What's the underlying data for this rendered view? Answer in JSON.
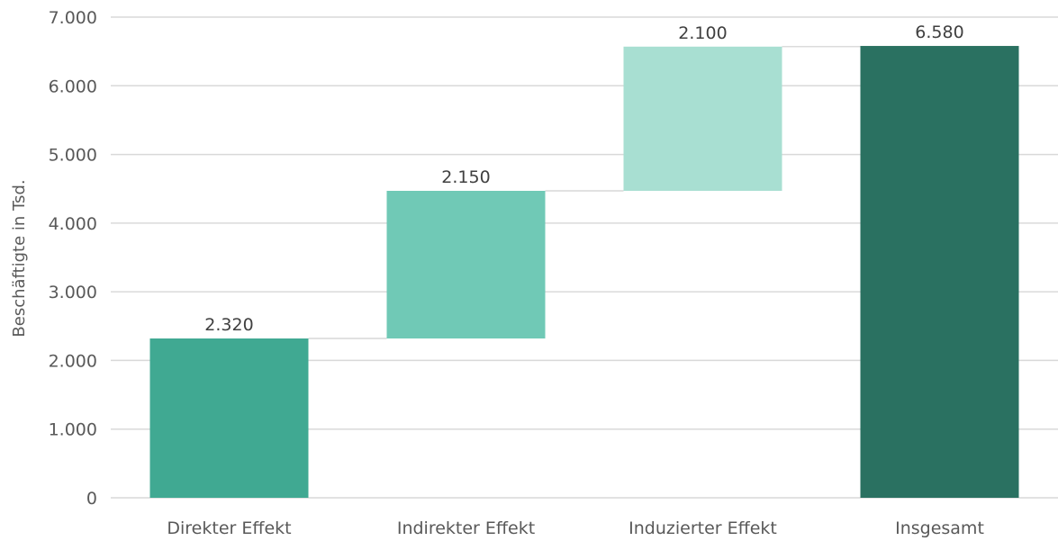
{
  "chart_data": {
    "type": "bar",
    "subtype": "waterfall",
    "title": "",
    "xlabel": "",
    "ylabel": "Beschäftigte in Tsd.",
    "ylim": [
      0,
      7000
    ],
    "yticks": [
      0,
      1000,
      2000,
      3000,
      4000,
      5000,
      6000,
      7000
    ],
    "ytick_labels": [
      "0",
      "1.000",
      "2.000",
      "3.000",
      "4.000",
      "5.000",
      "6.000",
      "7.000"
    ],
    "grid": true,
    "legend": "none",
    "categories": [
      "Direkter Effekt",
      "Indirekter Effekt",
      "Induzierter Effekt",
      "Insgesamt"
    ],
    "values": [
      2320,
      2150,
      2100,
      6580
    ],
    "value_labels": [
      "2.320",
      "2.150",
      "2.100",
      "6.580"
    ],
    "is_total": [
      false,
      false,
      false,
      true
    ],
    "colors": [
      "#40a992",
      "#70c9b6",
      "#a8dfd2",
      "#2a7161"
    ]
  }
}
